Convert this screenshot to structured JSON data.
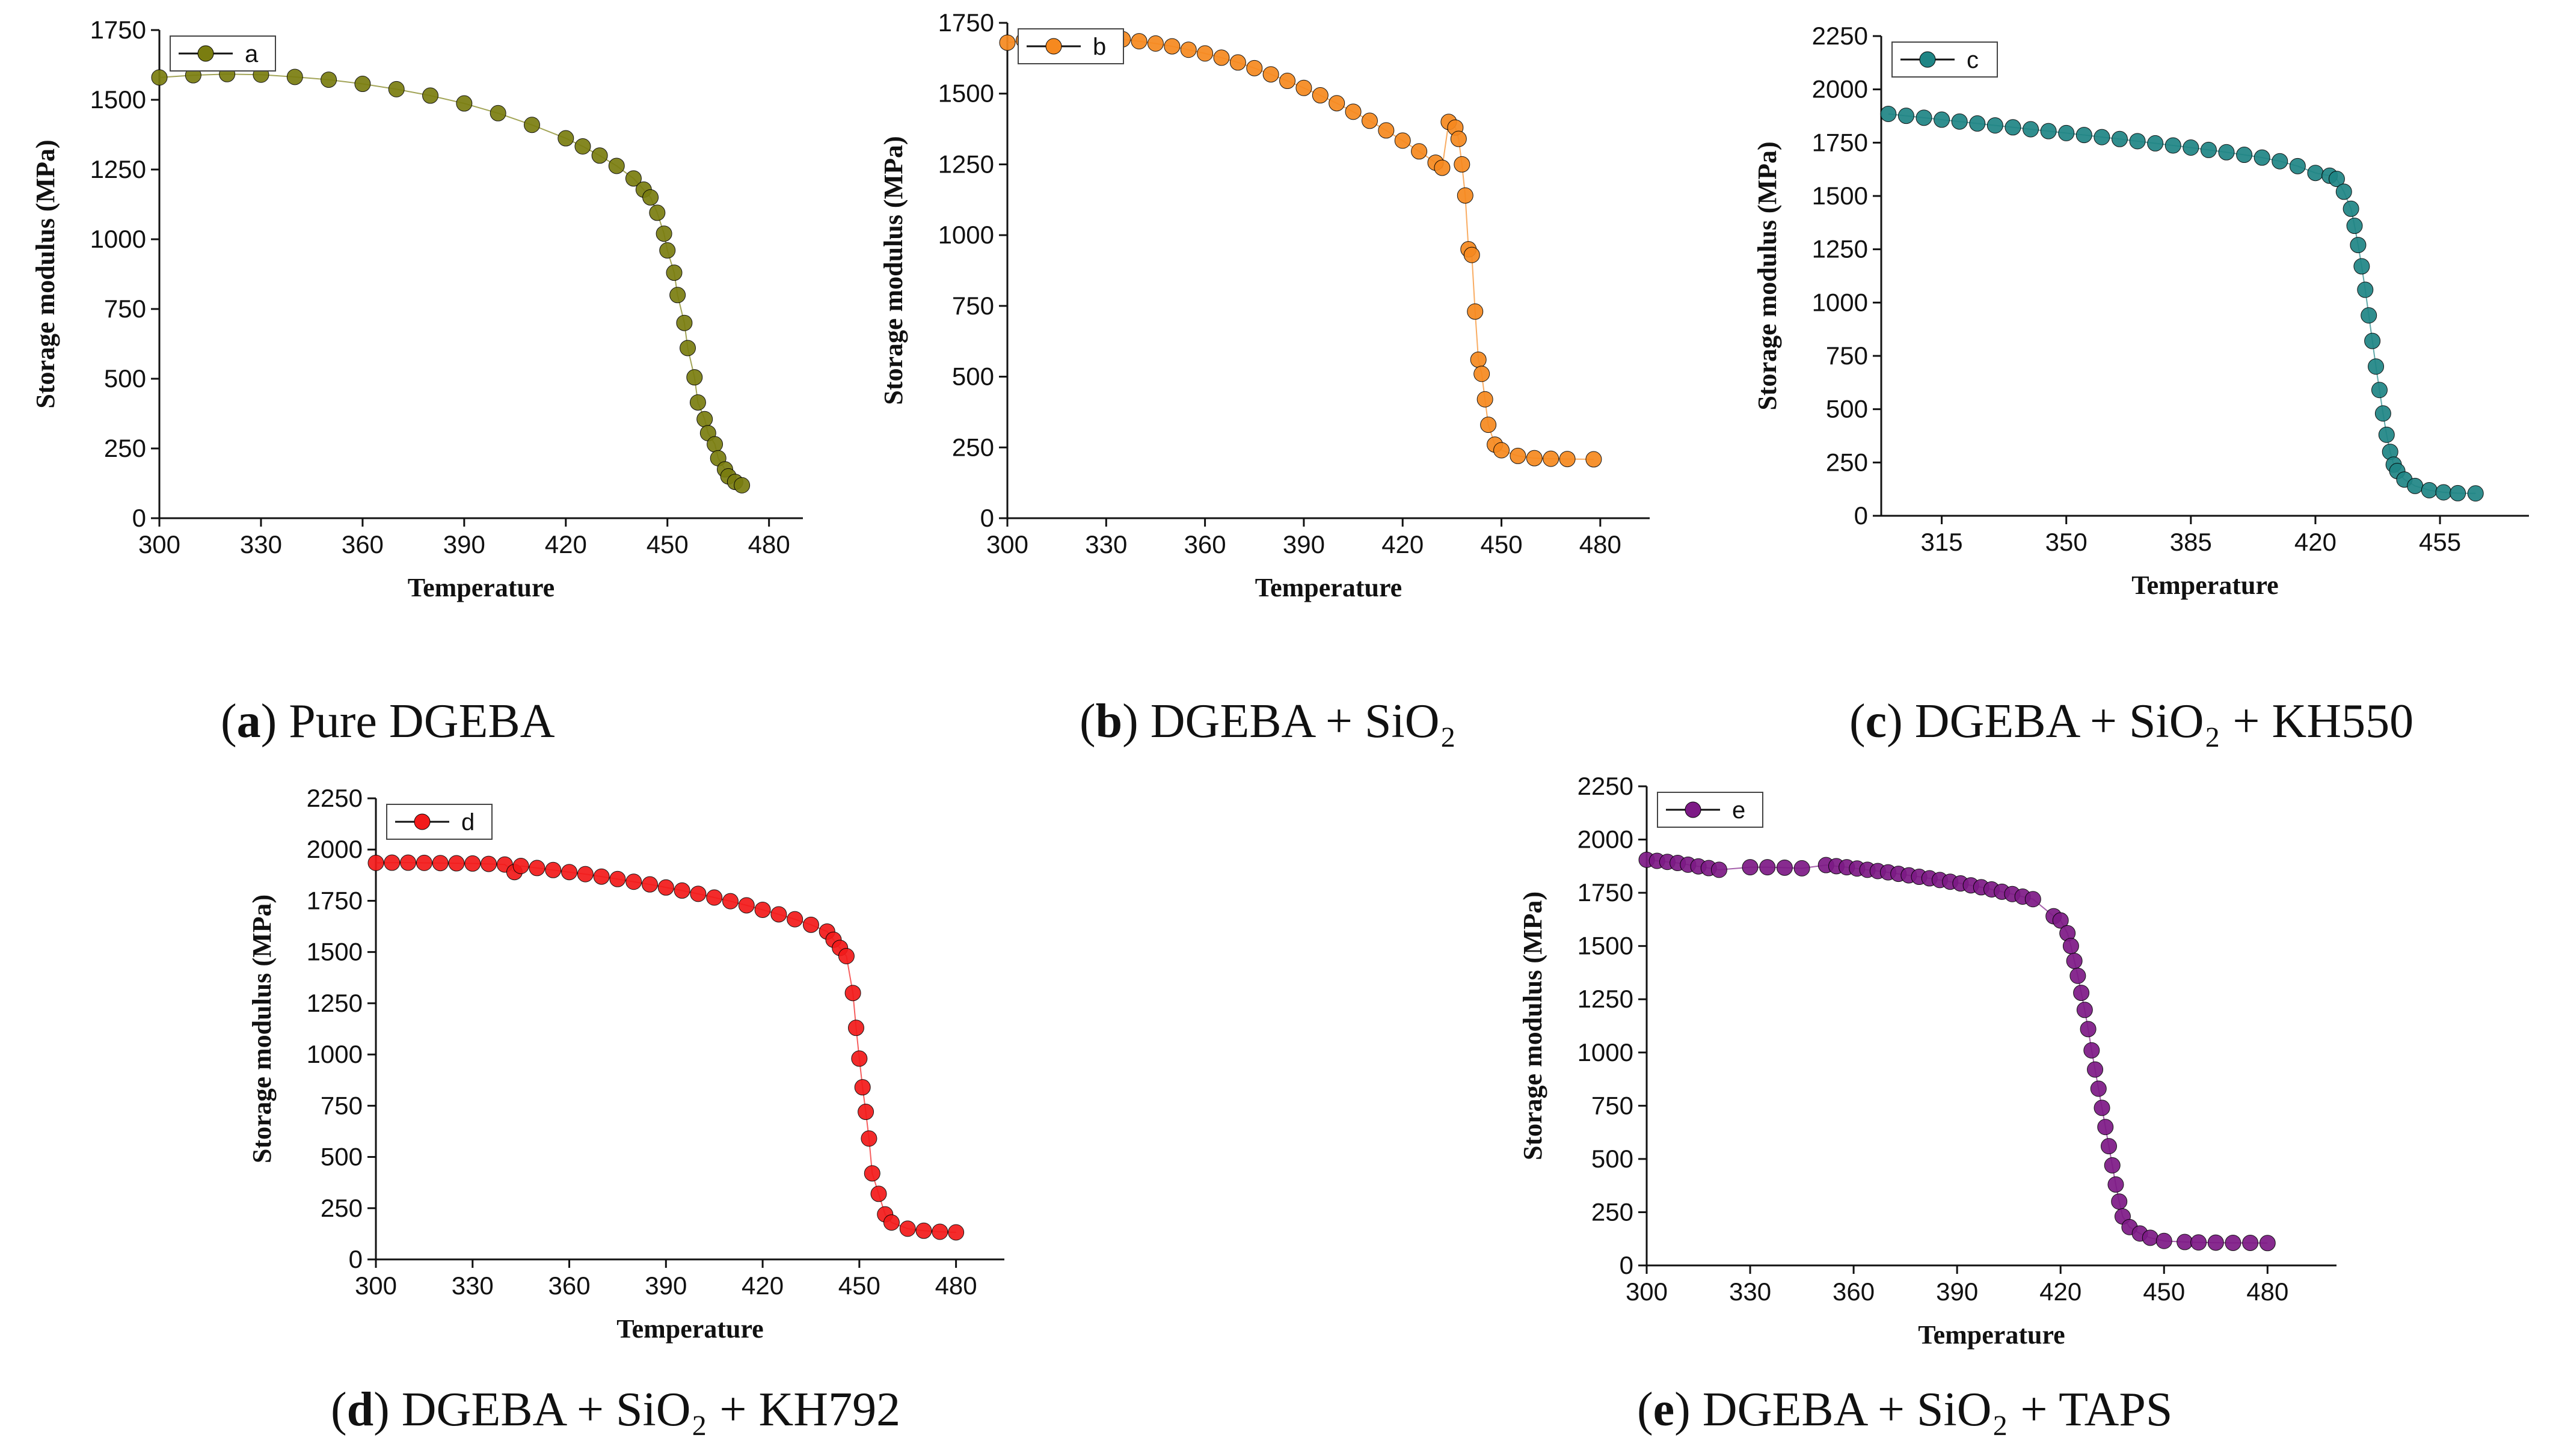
{
  "chart_data": [
    {
      "type": "scatter",
      "series": [
        {
          "name": "a",
          "color": "#7a7d10"
        }
      ],
      "caption": {
        "letter": "a",
        "text": "Pure DGEBA"
      },
      "xlabel": "Temperature",
      "ylabel": "Storage modulus (MPa)",
      "xlim": [
        300,
        490
      ],
      "ylim": [
        0,
        1750
      ],
      "xticks": [
        300,
        330,
        360,
        390,
        420,
        450,
        480
      ],
      "yticks": [
        0,
        250,
        500,
        750,
        1000,
        1250,
        1500,
        1750
      ],
      "points": [
        [
          300,
          1580
        ],
        [
          310,
          1588
        ],
        [
          320,
          1592
        ],
        [
          330,
          1590
        ],
        [
          340,
          1582
        ],
        [
          350,
          1572
        ],
        [
          360,
          1557
        ],
        [
          370,
          1538
        ],
        [
          380,
          1515
        ],
        [
          390,
          1487
        ],
        [
          400,
          1452
        ],
        [
          410,
          1410
        ],
        [
          420,
          1362
        ],
        [
          425,
          1333
        ],
        [
          430,
          1300
        ],
        [
          435,
          1263
        ],
        [
          440,
          1218
        ],
        [
          443,
          1178
        ],
        [
          445,
          1150
        ],
        [
          447,
          1095
        ],
        [
          449,
          1020
        ],
        [
          450,
          960
        ],
        [
          452,
          880
        ],
        [
          453,
          800
        ],
        [
          455,
          700
        ],
        [
          456,
          610
        ],
        [
          458,
          505
        ],
        [
          459,
          415
        ],
        [
          461,
          355
        ],
        [
          462,
          305
        ],
        [
          464,
          265
        ],
        [
          465,
          215
        ],
        [
          467,
          175
        ],
        [
          468,
          150
        ],
        [
          470,
          130
        ],
        [
          472,
          118
        ]
      ]
    },
    {
      "type": "scatter",
      "series": [
        {
          "name": "b",
          "color": "#f6891f"
        }
      ],
      "caption": {
        "letter": "b",
        "text": "DGEBA + SiO₂"
      },
      "xlabel": "Temperature",
      "ylabel": "Storage modulus (MPa)",
      "xlim": [
        300,
        495
      ],
      "ylim": [
        0,
        1750
      ],
      "xticks": [
        300,
        330,
        360,
        390,
        420,
        450,
        480
      ],
      "yticks": [
        0,
        250,
        500,
        750,
        1000,
        1250,
        1500,
        1750
      ],
      "points": [
        [
          300,
          1680
        ],
        [
          305,
          1688
        ],
        [
          310,
          1694
        ],
        [
          315,
          1698
        ],
        [
          320,
          1700
        ],
        [
          325,
          1700
        ],
        [
          330,
          1697
        ],
        [
          335,
          1692
        ],
        [
          340,
          1685
        ],
        [
          345,
          1677
        ],
        [
          350,
          1667
        ],
        [
          355,
          1655
        ],
        [
          360,
          1642
        ],
        [
          365,
          1627
        ],
        [
          370,
          1610
        ],
        [
          375,
          1590
        ],
        [
          380,
          1568
        ],
        [
          385,
          1545
        ],
        [
          390,
          1520
        ],
        [
          395,
          1494
        ],
        [
          400,
          1466
        ],
        [
          405,
          1436
        ],
        [
          410,
          1404
        ],
        [
          415,
          1370
        ],
        [
          420,
          1334
        ],
        [
          425,
          1296
        ],
        [
          430,
          1256
        ],
        [
          432,
          1238
        ],
        [
          434,
          1400
        ],
        [
          436,
          1380
        ],
        [
          437,
          1340
        ],
        [
          438,
          1250
        ],
        [
          439,
          1140
        ],
        [
          440,
          950
        ],
        [
          441,
          930
        ],
        [
          442,
          730
        ],
        [
          443,
          560
        ],
        [
          444,
          510
        ],
        [
          445,
          420
        ],
        [
          446,
          330
        ],
        [
          448,
          260
        ],
        [
          450,
          240
        ],
        [
          455,
          220
        ],
        [
          460,
          212
        ],
        [
          465,
          210
        ],
        [
          470,
          209
        ],
        [
          478,
          208
        ]
      ]
    },
    {
      "type": "scatter",
      "series": [
        {
          "name": "c",
          "color": "#1f8585"
        }
      ],
      "caption": {
        "letter": "c",
        "text": "DGEBA + SiO₂ + KH550"
      },
      "xlabel": "Temperature",
      "ylabel": "Storage modulus (MPa)",
      "xlim": [
        298,
        480
      ],
      "ylim": [
        0,
        2250
      ],
      "xticks": [
        315,
        350,
        385,
        420,
        455
      ],
      "yticks": [
        0,
        250,
        500,
        750,
        1000,
        1250,
        1500,
        1750,
        2000,
        2250
      ],
      "points": [
        [
          300,
          1885
        ],
        [
          305,
          1876
        ],
        [
          310,
          1867
        ],
        [
          315,
          1858
        ],
        [
          320,
          1849
        ],
        [
          325,
          1840
        ],
        [
          330,
          1831
        ],
        [
          335,
          1822
        ],
        [
          340,
          1813
        ],
        [
          345,
          1804
        ],
        [
          350,
          1795
        ],
        [
          355,
          1786
        ],
        [
          360,
          1776
        ],
        [
          365,
          1767
        ],
        [
          370,
          1757
        ],
        [
          375,
          1747
        ],
        [
          380,
          1737
        ],
        [
          385,
          1727
        ],
        [
          390,
          1716
        ],
        [
          395,
          1705
        ],
        [
          400,
          1693
        ],
        [
          405,
          1680
        ],
        [
          410,
          1663
        ],
        [
          415,
          1640
        ],
        [
          420,
          1608
        ],
        [
          424,
          1595
        ],
        [
          426,
          1580
        ],
        [
          428,
          1520
        ],
        [
          430,
          1440
        ],
        [
          431,
          1360
        ],
        [
          432,
          1270
        ],
        [
          433,
          1170
        ],
        [
          434,
          1060
        ],
        [
          435,
          940
        ],
        [
          436,
          820
        ],
        [
          437,
          700
        ],
        [
          438,
          590
        ],
        [
          439,
          480
        ],
        [
          440,
          380
        ],
        [
          441,
          300
        ],
        [
          442,
          240
        ],
        [
          443,
          210
        ],
        [
          445,
          170
        ],
        [
          448,
          140
        ],
        [
          452,
          120
        ],
        [
          456,
          110
        ],
        [
          460,
          106
        ],
        [
          465,
          105
        ]
      ]
    },
    {
      "type": "scatter",
      "series": [
        {
          "name": "d",
          "color": "#f21a1a"
        }
      ],
      "caption": {
        "letter": "d",
        "text": "DGEBA + SiO₂ + KH792"
      },
      "xlabel": "Temperature",
      "ylabel": "Storage modulus (MPa)",
      "xlim": [
        300,
        495
      ],
      "ylim": [
        0,
        2250
      ],
      "xticks": [
        300,
        330,
        360,
        390,
        420,
        450,
        480
      ],
      "yticks": [
        0,
        250,
        500,
        750,
        1000,
        1250,
        1500,
        1750,
        2000,
        2250
      ],
      "points": [
        [
          300,
          1935
        ],
        [
          305,
          1936
        ],
        [
          310,
          1936
        ],
        [
          315,
          1935
        ],
        [
          320,
          1934
        ],
        [
          325,
          1933
        ],
        [
          330,
          1932
        ],
        [
          335,
          1930
        ],
        [
          340,
          1927
        ],
        [
          343,
          1890
        ],
        [
          345,
          1920
        ],
        [
          350,
          1910
        ],
        [
          355,
          1900
        ],
        [
          360,
          1890
        ],
        [
          365,
          1880
        ],
        [
          370,
          1868
        ],
        [
          375,
          1856
        ],
        [
          380,
          1843
        ],
        [
          385,
          1830
        ],
        [
          390,
          1815
        ],
        [
          395,
          1800
        ],
        [
          400,
          1784
        ],
        [
          405,
          1766
        ],
        [
          410,
          1748
        ],
        [
          415,
          1728
        ],
        [
          420,
          1706
        ],
        [
          425,
          1684
        ],
        [
          430,
          1660
        ],
        [
          435,
          1633
        ],
        [
          440,
          1600
        ],
        [
          442,
          1560
        ],
        [
          444,
          1520
        ],
        [
          446,
          1480
        ],
        [
          448,
          1300
        ],
        [
          449,
          1130
        ],
        [
          450,
          980
        ],
        [
          451,
          840
        ],
        [
          452,
          720
        ],
        [
          453,
          590
        ],
        [
          454,
          420
        ],
        [
          456,
          320
        ],
        [
          458,
          220
        ],
        [
          460,
          180
        ],
        [
          465,
          150
        ],
        [
          470,
          140
        ],
        [
          475,
          135
        ],
        [
          480,
          132
        ]
      ]
    },
    {
      "type": "scatter",
      "series": [
        {
          "name": "e",
          "color": "#7d1a86"
        }
      ],
      "caption": {
        "letter": "e",
        "text": "DGEBA + SiO₂ + TAPS"
      },
      "xlabel": "Temperature",
      "ylabel": "Storage modulus (MPa)",
      "xlim": [
        300,
        500
      ],
      "ylim": [
        0,
        2250
      ],
      "xticks": [
        300,
        330,
        360,
        390,
        420,
        450,
        480
      ],
      "yticks": [
        0,
        250,
        500,
        750,
        1000,
        1250,
        1500,
        1750,
        2000,
        2250
      ],
      "points": [
        [
          300,
          1905
        ],
        [
          303,
          1900
        ],
        [
          306,
          1895
        ],
        [
          309,
          1890
        ],
        [
          312,
          1882
        ],
        [
          315,
          1874
        ],
        [
          318,
          1866
        ],
        [
          321,
          1858
        ],
        [
          330,
          1870
        ],
        [
          335,
          1870
        ],
        [
          340,
          1868
        ],
        [
          345,
          1865
        ],
        [
          352,
          1880
        ],
        [
          355,
          1875
        ],
        [
          358,
          1870
        ],
        [
          361,
          1864
        ],
        [
          364,
          1858
        ],
        [
          367,
          1852
        ],
        [
          370,
          1846
        ],
        [
          373,
          1839
        ],
        [
          376,
          1832
        ],
        [
          379,
          1825
        ],
        [
          382,
          1818
        ],
        [
          385,
          1810
        ],
        [
          388,
          1802
        ],
        [
          391,
          1794
        ],
        [
          394,
          1785
        ],
        [
          397,
          1776
        ],
        [
          400,
          1766
        ],
        [
          403,
          1755
        ],
        [
          406,
          1744
        ],
        [
          409,
          1732
        ],
        [
          412,
          1720
        ],
        [
          418,
          1640
        ],
        [
          420,
          1620
        ],
        [
          422,
          1560
        ],
        [
          423,
          1500
        ],
        [
          424,
          1430
        ],
        [
          425,
          1360
        ],
        [
          426,
          1280
        ],
        [
          427,
          1200
        ],
        [
          428,
          1110
        ],
        [
          429,
          1010
        ],
        [
          430,
          920
        ],
        [
          431,
          830
        ],
        [
          432,
          740
        ],
        [
          433,
          650
        ],
        [
          434,
          560
        ],
        [
          435,
          470
        ],
        [
          436,
          380
        ],
        [
          437,
          300
        ],
        [
          438,
          230
        ],
        [
          440,
          180
        ],
        [
          443,
          150
        ],
        [
          446,
          130
        ],
        [
          450,
          115
        ],
        [
          456,
          110
        ],
        [
          460,
          108
        ],
        [
          465,
          107
        ],
        [
          470,
          106
        ],
        [
          475,
          106
        ],
        [
          480,
          105
        ]
      ]
    }
  ]
}
